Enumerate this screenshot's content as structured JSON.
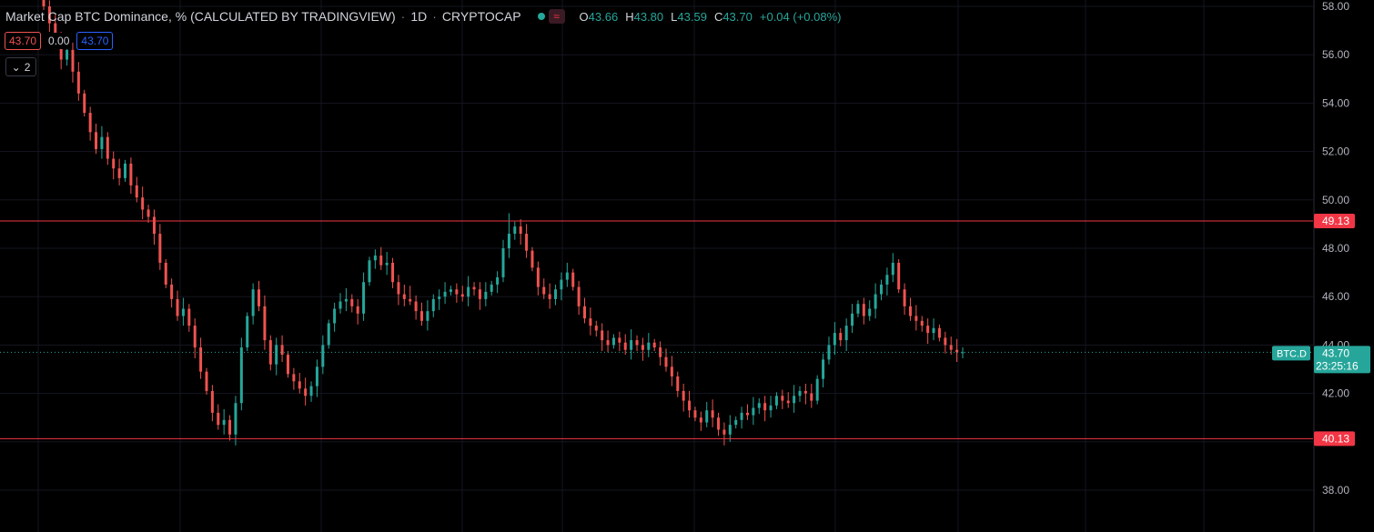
{
  "legend": {
    "title": "Market Cap BTC Dominance, % (CALCULATED BY TRADINGVIEW)",
    "interval": "1D",
    "exchange": "CRYPTOCAP",
    "status_dot_color": "#26a69a",
    "icon": "wave-icon",
    "ohlc": {
      "o_label": "O",
      "o": "43.66",
      "h_label": "H",
      "h": "43.80",
      "l_label": "L",
      "l": "43.59",
      "c_label": "C",
      "c": "43.70",
      "change": "+0.04 (+0.08%)"
    }
  },
  "indicator_values": {
    "a": "43.70",
    "b": "0.00",
    "c": "43.70"
  },
  "collapse": {
    "count": "2",
    "icon": "chevron-down-icon"
  },
  "chart_data": {
    "type": "candlestick",
    "symbol": "BTC.D",
    "last_price": "43.70",
    "countdown": "23:25:16",
    "y_ticks": [
      "58.00",
      "56.00",
      "54.00",
      "52.00",
      "50.00",
      "48.00",
      "46.00",
      "44.00",
      "42.00",
      "40.00",
      "38.00"
    ],
    "ylim": [
      37.0,
      58.2
    ],
    "horizontal_lines": [
      {
        "value": 49.13,
        "label": "49.13",
        "color": "#f23645"
      },
      {
        "value": 40.13,
        "label": "40.13",
        "color": "#f23645"
      }
    ],
    "up_color": "#26a69a",
    "down_color": "#ef5350",
    "closes": [
      58.0,
      57.3,
      56.5,
      55.8,
      56.2,
      55.3,
      54.4,
      53.6,
      52.8,
      52.1,
      52.6,
      51.7,
      51.3,
      50.9,
      51.5,
      50.6,
      50.1,
      49.6,
      49.3,
      48.6,
      47.4,
      46.5,
      45.9,
      45.2,
      45.5,
      44.8,
      43.9,
      42.9,
      42.1,
      41.2,
      40.7,
      40.9,
      40.3,
      41.6,
      43.9,
      45.2,
      46.3,
      45.6,
      44.2,
      43.2,
      44.0,
      43.6,
      42.8,
      42.5,
      42.2,
      41.9,
      42.3,
      43.1,
      44.0,
      44.9,
      45.5,
      45.8,
      45.9,
      45.6,
      45.3,
      46.6,
      47.5,
      47.7,
      47.3,
      47.4,
      46.6,
      46.1,
      45.9,
      45.8,
      45.4,
      45.0,
      45.4,
      45.9,
      46.0,
      46.2,
      46.3,
      46.1,
      46.0,
      46.4,
      46.3,
      45.9,
      46.2,
      46.5,
      46.8,
      48.0,
      48.6,
      48.9,
      48.6,
      47.9,
      47.2,
      46.4,
      46.1,
      45.9,
      46.3,
      46.7,
      47.0,
      46.4,
      45.6,
      45.1,
      44.8,
      44.6,
      44.2,
      44.0,
      44.3,
      44.1,
      43.8,
      44.2,
      44.0,
      43.8,
      44.1,
      43.9,
      43.5,
      43.1,
      42.7,
      42.1,
      41.7,
      41.3,
      41.0,
      40.8,
      41.3,
      41.0,
      40.5,
      40.3,
      40.7,
      40.9,
      41.2,
      41.1,
      41.4,
      41.6,
      41.3,
      41.5,
      41.9,
      41.7,
      41.6,
      41.9,
      42.1,
      42.0,
      41.7,
      42.6,
      43.4,
      44.0,
      44.5,
      44.2,
      44.8,
      45.3,
      45.7,
      45.2,
      45.5,
      46.1,
      46.5,
      46.9,
      47.4,
      46.3,
      45.6,
      45.2,
      45.0,
      44.8,
      44.5,
      44.7,
      44.3,
      44.0,
      43.8,
      43.7,
      43.7
    ]
  }
}
